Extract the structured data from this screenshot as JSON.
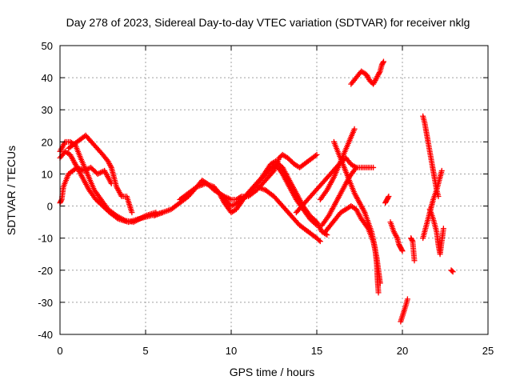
{
  "chart_data": {
    "type": "scatter",
    "title": "Day 278 of 2023, Sidereal Day-to-day VTEC variation (SDTVAR) for receiver nklg",
    "xlabel": "GPS time / hours",
    "ylabel": "SDTVAR / TECUs",
    "xlim": [
      0,
      25
    ],
    "ylim": [
      -40,
      50
    ],
    "xticks": [
      0,
      5,
      10,
      15,
      20,
      25
    ],
    "yticks": [
      -40,
      -30,
      -20,
      -10,
      0,
      10,
      20,
      30,
      40,
      50
    ],
    "grid": true,
    "marker": "+",
    "color": "#ff0000",
    "tracks": [
      {
        "name": "track-1",
        "points": [
          [
            0.0,
            1
          ],
          [
            0.1,
            2
          ],
          [
            0.2,
            6
          ],
          [
            0.5,
            10
          ],
          [
            1.0,
            12
          ],
          [
            1.4,
            11
          ],
          [
            1.8,
            12
          ],
          [
            2.2,
            10
          ],
          [
            2.6,
            11
          ],
          [
            3.0,
            7
          ]
        ]
      },
      {
        "name": "track-2",
        "points": [
          [
            0.0,
            17
          ],
          [
            0.3,
            20
          ],
          [
            0.6,
            20
          ],
          [
            0.9,
            19
          ],
          [
            1.2,
            15
          ],
          [
            1.6,
            10
          ],
          [
            2.0,
            5
          ],
          [
            2.4,
            2
          ],
          [
            2.8,
            -1
          ],
          [
            3.3,
            -3
          ],
          [
            3.8,
            -4.5
          ],
          [
            4.3,
            -5
          ],
          [
            5.0,
            -3
          ],
          [
            5.6,
            -2
          ]
        ]
      },
      {
        "name": "track-3",
        "points": [
          [
            0.0,
            15
          ],
          [
            0.3,
            17
          ],
          [
            0.6,
            16
          ],
          [
            0.9,
            13
          ],
          [
            1.3,
            9
          ],
          [
            1.7,
            5
          ],
          [
            2.1,
            2
          ],
          [
            2.5,
            0
          ],
          [
            2.9,
            -2
          ],
          [
            3.4,
            -4
          ],
          [
            4.0,
            -5
          ],
          [
            4.6,
            -4
          ],
          [
            5.3,
            -3
          ],
          [
            6.0,
            -2
          ]
        ]
      },
      {
        "name": "track-4",
        "points": [
          [
            0.5,
            18
          ],
          [
            1.0,
            20
          ],
          [
            1.5,
            22
          ],
          [
            2.0,
            19
          ],
          [
            2.5,
            16
          ],
          [
            2.8,
            14
          ],
          [
            3.0,
            12
          ],
          [
            3.3,
            6
          ],
          [
            3.6,
            3
          ],
          [
            3.9,
            3
          ],
          [
            4.2,
            -2
          ]
        ]
      },
      {
        "name": "track-5",
        "points": [
          [
            5.5,
            -3
          ],
          [
            6.0,
            -2
          ],
          [
            6.5,
            -1
          ],
          [
            7.0,
            1
          ],
          [
            7.5,
            3
          ],
          [
            8.0,
            6
          ],
          [
            8.3,
            8
          ],
          [
            8.6,
            7
          ],
          [
            9.0,
            5
          ],
          [
            9.3,
            4
          ],
          [
            9.6,
            3
          ],
          [
            10.0,
            2
          ],
          [
            10.3,
            2
          ],
          [
            10.6,
            3
          ],
          [
            11.0,
            3
          ],
          [
            11.5,
            5
          ],
          [
            12.0,
            8
          ],
          [
            12.5,
            11
          ],
          [
            12.8,
            15
          ],
          [
            13.0,
            16
          ],
          [
            13.3,
            15
          ],
          [
            13.7,
            13
          ],
          [
            14.0,
            12
          ],
          [
            14.5,
            14
          ],
          [
            15.0,
            16
          ]
        ]
      },
      {
        "name": "track-6",
        "points": [
          [
            7.0,
            2
          ],
          [
            7.5,
            4
          ],
          [
            8.0,
            6
          ],
          [
            8.5,
            7
          ],
          [
            9.0,
            6
          ],
          [
            9.3,
            4
          ],
          [
            9.6,
            1
          ],
          [
            10.0,
            -2
          ],
          [
            10.3,
            -1
          ],
          [
            10.7,
            2
          ],
          [
            11.2,
            5
          ],
          [
            11.7,
            8
          ],
          [
            12.2,
            11
          ],
          [
            12.6,
            13
          ],
          [
            13.0,
            10
          ],
          [
            13.4,
            6
          ],
          [
            13.8,
            2
          ],
          [
            14.2,
            -1
          ],
          [
            14.6,
            -4
          ],
          [
            15.0,
            -6
          ]
        ]
      },
      {
        "name": "track-7",
        "points": [
          [
            9.5,
            3
          ],
          [
            9.8,
            1
          ],
          [
            10.0,
            0
          ],
          [
            10.4,
            1
          ],
          [
            10.8,
            3
          ],
          [
            11.3,
            6
          ],
          [
            11.8,
            9
          ],
          [
            12.3,
            13
          ],
          [
            12.6,
            14
          ],
          [
            13.0,
            12
          ],
          [
            13.4,
            8
          ],
          [
            13.8,
            4
          ],
          [
            14.2,
            0
          ],
          [
            14.6,
            -3
          ],
          [
            15.0,
            -5
          ],
          [
            15.3,
            -8
          ],
          [
            15.6,
            -9
          ]
        ]
      },
      {
        "name": "track-8",
        "points": [
          [
            11.5,
            6
          ],
          [
            12.0,
            5
          ],
          [
            12.5,
            3
          ],
          [
            13.0,
            0
          ],
          [
            13.5,
            -3
          ],
          [
            14.0,
            -6
          ],
          [
            14.5,
            -8
          ],
          [
            15.0,
            -10
          ],
          [
            15.2,
            -11
          ]
        ]
      },
      {
        "name": "track-9",
        "points": [
          [
            15.2,
            2
          ],
          [
            15.6,
            5
          ],
          [
            16.0,
            9
          ],
          [
            16.4,
            14
          ],
          [
            16.8,
            19
          ],
          [
            17.2,
            24
          ]
        ]
      },
      {
        "name": "track-10",
        "points": [
          [
            13.8,
            -2
          ],
          [
            14.3,
            1
          ],
          [
            14.8,
            4
          ],
          [
            15.3,
            7
          ],
          [
            15.8,
            10
          ],
          [
            16.3,
            13
          ],
          [
            16.7,
            15
          ],
          [
            17.0,
            13
          ],
          [
            17.3,
            12
          ],
          [
            17.7,
            12
          ],
          [
            18.0,
            12
          ],
          [
            18.3,
            12
          ]
        ]
      },
      {
        "name": "track-11",
        "points": [
          [
            15.3,
            -6
          ],
          [
            15.7,
            -3
          ],
          [
            16.1,
            1
          ],
          [
            16.5,
            5
          ],
          [
            16.9,
            9
          ],
          [
            17.3,
            12
          ]
        ]
      },
      {
        "name": "track-12",
        "points": [
          [
            16.0,
            20
          ],
          [
            16.3,
            16
          ],
          [
            16.6,
            12
          ],
          [
            16.9,
            8
          ],
          [
            17.2,
            4
          ],
          [
            17.5,
            1
          ],
          [
            17.8,
            -2
          ],
          [
            18.0,
            -5
          ],
          [
            18.2,
            -8
          ],
          [
            18.4,
            -13
          ],
          [
            18.5,
            -18
          ],
          [
            18.55,
            -23
          ],
          [
            18.6,
            -27
          ]
        ]
      },
      {
        "name": "track-13",
        "points": [
          [
            15.5,
            -8
          ],
          [
            15.8,
            -6
          ],
          [
            16.1,
            -4
          ],
          [
            16.4,
            -2
          ],
          [
            16.7,
            -1
          ],
          [
            17.0,
            0
          ],
          [
            17.3,
            -1
          ],
          [
            17.6,
            -4
          ],
          [
            18.0,
            -7
          ],
          [
            18.3,
            -11
          ],
          [
            18.5,
            -16
          ],
          [
            18.6,
            -20
          ],
          [
            18.7,
            -24
          ]
        ]
      },
      {
        "name": "track-14",
        "points": [
          [
            17.0,
            38
          ],
          [
            17.3,
            40
          ],
          [
            17.6,
            42
          ],
          [
            17.9,
            41
          ],
          [
            18.1,
            39
          ],
          [
            18.3,
            38
          ],
          [
            18.5,
            40
          ],
          [
            18.7,
            42
          ],
          [
            18.8,
            44
          ],
          [
            18.9,
            45
          ]
        ]
      },
      {
        "name": "track-15",
        "points": [
          [
            19.0,
            1
          ],
          [
            19.1,
            2
          ],
          [
            19.2,
            3
          ]
        ]
      },
      {
        "name": "track-16",
        "points": [
          [
            19.3,
            -5
          ],
          [
            19.5,
            -8
          ],
          [
            19.7,
            -10
          ],
          [
            19.8,
            -12
          ],
          [
            19.9,
            -13
          ],
          [
            20.0,
            -14
          ]
        ]
      },
      {
        "name": "track-17",
        "points": [
          [
            19.9,
            -36
          ],
          [
            20.2,
            -31
          ],
          [
            20.3,
            -29
          ]
        ]
      },
      {
        "name": "track-18",
        "points": [
          [
            20.5,
            -10
          ],
          [
            20.6,
            -11
          ],
          [
            20.7,
            -17
          ]
        ]
      },
      {
        "name": "track-19",
        "points": [
          [
            21.2,
            28
          ],
          [
            21.3,
            26
          ],
          [
            21.4,
            23
          ],
          [
            21.5,
            20
          ],
          [
            21.6,
            17
          ],
          [
            21.7,
            14
          ],
          [
            21.8,
            11
          ],
          [
            21.9,
            8
          ],
          [
            22.0,
            5
          ],
          [
            22.1,
            3
          ]
        ]
      },
      {
        "name": "track-20",
        "points": [
          [
            21.2,
            -10
          ],
          [
            21.4,
            -6
          ],
          [
            21.6,
            -2
          ],
          [
            21.8,
            2
          ],
          [
            22.0,
            5
          ],
          [
            22.2,
            9
          ],
          [
            22.3,
            11
          ]
        ]
      },
      {
        "name": "track-21",
        "points": [
          [
            21.6,
            -1
          ],
          [
            21.8,
            -4
          ],
          [
            22.0,
            -8
          ],
          [
            22.1,
            -12
          ],
          [
            22.2,
            -15
          ],
          [
            22.4,
            -7
          ]
        ]
      },
      {
        "name": "track-22",
        "points": [
          [
            22.85,
            -20
          ],
          [
            22.95,
            -20.5
          ]
        ]
      }
    ]
  }
}
